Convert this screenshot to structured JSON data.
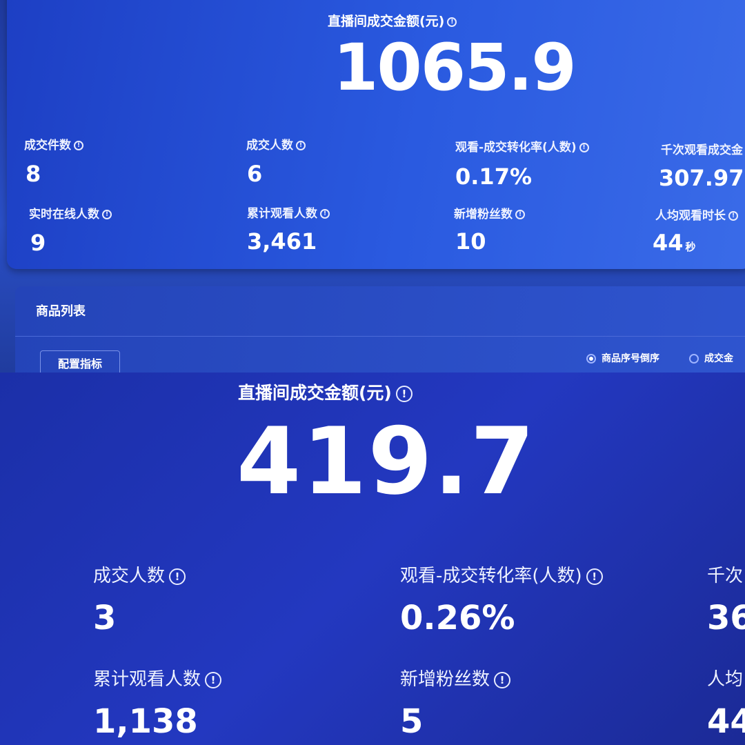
{
  "top": {
    "header": {
      "title": "直播间成交金额(元)",
      "value": "1065.9"
    },
    "metrics": [
      {
        "label": "成交件数",
        "value": "8"
      },
      {
        "label": "成交人数",
        "value": "6"
      },
      {
        "label": "观看-成交转化率(人数)",
        "value": "0.17%"
      },
      {
        "label": "千次观看成交金",
        "value": "307.97"
      },
      {
        "label": "实时在线人数",
        "value": "9"
      },
      {
        "label": "累计观看人数",
        "value": "3,461"
      },
      {
        "label": "新增粉丝数",
        "value": "10"
      },
      {
        "label": "人均观看时长",
        "value": "44",
        "unit": "秒"
      }
    ],
    "product_list": {
      "title": "商品列表",
      "button": "配置指标",
      "sort_options": [
        "商品序号倒序",
        "成交金"
      ]
    }
  },
  "bottom": {
    "header": {
      "title": "直播间成交金额(元)",
      "value": "419.7"
    },
    "metrics": [
      {
        "label": "成交人数",
        "value": "3"
      },
      {
        "label": "观看-成交转化率(人数)",
        "value": "0.26%"
      },
      {
        "label": "千次",
        "value": "36"
      },
      {
        "label": "累计观看人数",
        "value": "1,138"
      },
      {
        "label": "新增粉丝数",
        "value": "5"
      },
      {
        "label": "人均",
        "value": "44"
      }
    ]
  }
}
